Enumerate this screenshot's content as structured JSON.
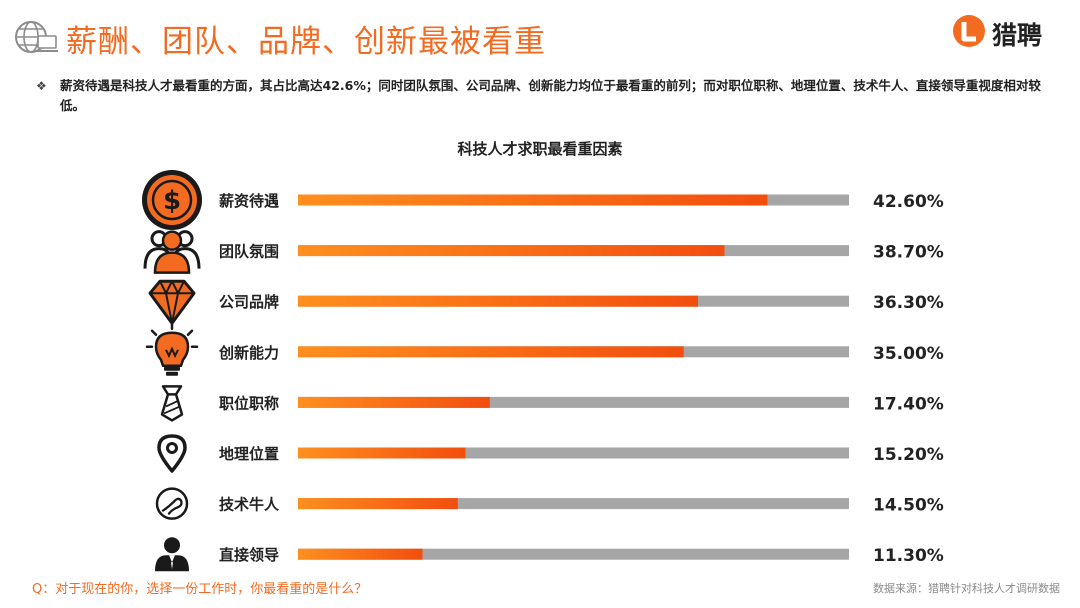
{
  "header": {
    "title": "薪酬、团队、品牌、创新最被看重",
    "logo_text": "猎聘",
    "globe_icon": "globe-icon",
    "logo_icon": "liepin-logo-icon"
  },
  "summary": {
    "bullet_symbol": "❖",
    "text": "薪资待遇是科技人才最看重的方面，其占比高达42.6%；同时团队氛围、公司品牌、创新能力均位于最看重的前列；而对职位职称、地理位置、技术牛人、直接领导重视度相对较低。"
  },
  "footer": {
    "question": "Q：对于现在的你，选择一份工作时，你最看重的是什么？",
    "source": "数据来源：猎聘针对科技人才调研数据"
  },
  "colors": {
    "accent": "#f26b21",
    "bar_fill_start": "#ff8f1f",
    "bar_fill_end": "#f24e0e",
    "bar_track": "#a6a6a6",
    "icon_dark": "#1a1a1a"
  },
  "chart_data": {
    "type": "bar",
    "orientation": "horizontal",
    "title": "科技人才求职最看重因素",
    "categories": [
      "薪资待遇",
      "团队氛围",
      "公司品牌",
      "创新能力",
      "职位职称",
      "地理位置",
      "技术牛人",
      "直接领导"
    ],
    "values": [
      42.6,
      38.7,
      36.3,
      35.0,
      17.4,
      15.2,
      14.5,
      11.3
    ],
    "value_labels": [
      "42.60%",
      "38.70%",
      "36.30%",
      "35.00%",
      "17.40%",
      "15.20%",
      "14.50%",
      "11.30%"
    ],
    "max": 50,
    "icons": [
      "dollar-coin-icon",
      "team-people-icon",
      "diamond-icon",
      "lightbulb-icon",
      "necktie-icon",
      "location-pin-icon",
      "tech-expert-icon",
      "leader-person-icon"
    ]
  }
}
